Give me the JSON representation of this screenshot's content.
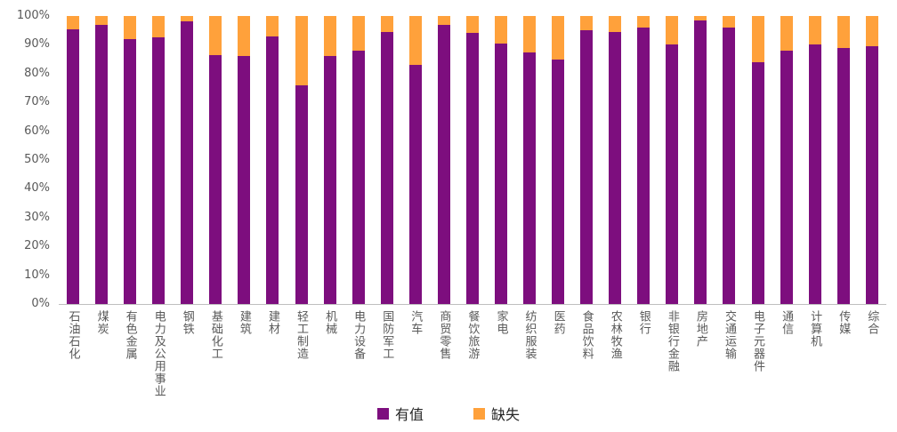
{
  "chart_data": {
    "type": "bar",
    "stacked": true,
    "percent_stacked": true,
    "title": "",
    "xlabel": "",
    "ylabel": "",
    "ylim": [
      0,
      100
    ],
    "grid": false,
    "legend_position": "bottom",
    "y_ticks": [
      "100%",
      "90%",
      "80%",
      "70%",
      "60%",
      "50%",
      "40%",
      "30%",
      "20%",
      "10%",
      "0%"
    ],
    "categories": [
      "石油石化",
      "煤炭",
      "有色金属",
      "电力及公用事业",
      "钢铁",
      "基础化工",
      "建筑",
      "建材",
      "轻工制造",
      "机械",
      "电力设备",
      "国防军工",
      "汽车",
      "商贸零售",
      "餐饮旅游",
      "家电",
      "纺织服装",
      "医药",
      "食品饮料",
      "农林牧渔",
      "银行",
      "非银行金融",
      "房地产",
      "交通运输",
      "电子元器件",
      "通信",
      "计算机",
      "传媒",
      "综合"
    ],
    "series": [
      {
        "name": "有值",
        "color": "#7D0E7E",
        "values": [
          95.5,
          97,
          92,
          92.5,
          98,
          86.5,
          86,
          93,
          76,
          86,
          88,
          94.5,
          83,
          97,
          94,
          90.5,
          87.5,
          85,
          95,
          94.5,
          96,
          90,
          98.5,
          96,
          84,
          88,
          90,
          89,
          89.5
        ]
      },
      {
        "name": "缺失",
        "color": "#FFA13B",
        "values": [
          4.5,
          3,
          8,
          7.5,
          2,
          13.5,
          14,
          7,
          24,
          14,
          12,
          5.5,
          17,
          3,
          6,
          9.5,
          12.5,
          15,
          5,
          5.5,
          4,
          10,
          1.5,
          4,
          16,
          12,
          10,
          11,
          10.5
        ]
      }
    ],
    "axis_color": "#bfbfbf",
    "tick_label_color": "#595959"
  },
  "legend": {
    "items": [
      {
        "label": "有值",
        "color": "#7D0E7E"
      },
      {
        "label": "缺失",
        "color": "#FFA13B"
      }
    ]
  }
}
